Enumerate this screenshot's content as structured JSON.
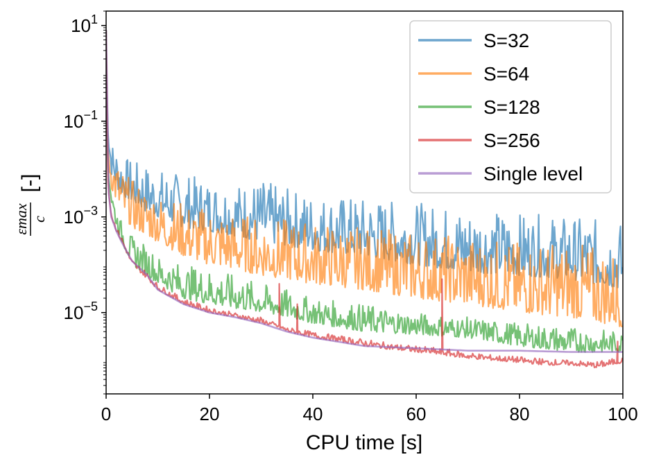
{
  "chart_data": {
    "type": "line",
    "xlabel": "CPU time [s]",
    "ylabel": "[-]",
    "ylabel_math": {
      "numerator": "εmax",
      "denominator": "c"
    },
    "xlim": [
      0,
      100
    ],
    "ylim": [
      2e-07,
      20
    ],
    "yscale": "log",
    "x_ticks": [
      0,
      20,
      40,
      60,
      80,
      100
    ],
    "y_ticks": [
      {
        "value": 10,
        "base": "10",
        "exp": "1"
      },
      {
        "value": 0.1,
        "base": "10",
        "exp": "−1"
      },
      {
        "value": 0.001,
        "base": "10",
        "exp": "−3"
      },
      {
        "value": 1e-05,
        "base": "10",
        "exp": "−5"
      }
    ],
    "grid": false,
    "legend_position": "top-right",
    "series": [
      {
        "name": "S=32",
        "color": "#1f77b4",
        "x": [
          0,
          0.3,
          1,
          2,
          3,
          5,
          8,
          10,
          15,
          20,
          25,
          30,
          35,
          40,
          50,
          60,
          70,
          80,
          90,
          100
        ],
        "low": [
          8,
          0.05,
          0.008,
          0.004,
          0.003,
          0.002,
          0.0012,
          0.001,
          0.0006,
          0.0005,
          0.0004,
          0.0003,
          0.00025,
          0.0002,
          0.00015,
          0.0001,
          7e-05,
          6e-05,
          5e-05,
          3e-05
        ],
        "high": [
          8,
          0.06,
          0.04,
          0.03,
          0.02,
          0.015,
          0.012,
          0.01,
          0.008,
          0.006,
          0.005,
          0.006,
          0.004,
          0.003,
          0.0025,
          0.002,
          0.0015,
          0.0012,
          0.001,
          0.0008
        ]
      },
      {
        "name": "S=64",
        "color": "#ff7f0e",
        "x": [
          0,
          0.3,
          1,
          2,
          3,
          5,
          8,
          10,
          15,
          20,
          25,
          30,
          35,
          40,
          50,
          60,
          70,
          80,
          90,
          100
        ],
        "low": [
          8,
          0.02,
          0.004,
          0.002,
          0.0012,
          0.0006,
          0.0004,
          0.0003,
          0.00015,
          0.0001,
          8e-05,
          6e-05,
          5e-05,
          4e-05,
          3e-05,
          2e-05,
          1.5e-05,
          1e-05,
          8e-06,
          5e-06
        ],
        "high": [
          8,
          0.03,
          0.02,
          0.015,
          0.01,
          0.006,
          0.004,
          0.003,
          0.002,
          0.0015,
          0.0012,
          0.001,
          0.0009,
          0.0008,
          0.0006,
          0.0005,
          0.0004,
          0.0003,
          0.0003,
          0.0002
        ]
      },
      {
        "name": "S=128",
        "color": "#2ca02c",
        "x": [
          0,
          0.3,
          1,
          2,
          3,
          5,
          8,
          10,
          15,
          20,
          25,
          30,
          35,
          40,
          50,
          60,
          70,
          80,
          90,
          100
        ],
        "low": [
          8,
          0.01,
          0.002,
          0.0006,
          0.0003,
          0.0001,
          6e-05,
          4e-05,
          2e-05,
          1.5e-05,
          1.2e-05,
          1e-05,
          8e-06,
          6e-06,
          4e-06,
          3.5e-06,
          3e-06,
          2e-06,
          1.5e-06,
          1.5e-06
        ],
        "high": [
          8,
          0.012,
          0.004,
          0.0015,
          0.0008,
          0.0004,
          0.00025,
          0.00015,
          0.0001,
          8e-05,
          6e-05,
          4e-05,
          3e-05,
          2e-05,
          1.5e-05,
          1e-05,
          8e-06,
          6e-06,
          5e-06,
          4e-06
        ]
      },
      {
        "name": "S=256",
        "color": "#d62728",
        "x": [
          0,
          0.3,
          1,
          2,
          3,
          5,
          8,
          10,
          15,
          20,
          25,
          30,
          33,
          35,
          40,
          45,
          50,
          55,
          60,
          65,
          70,
          75,
          80,
          85,
          90,
          95,
          100
        ],
        "low": [
          8,
          0.005,
          0.001,
          0.0005,
          0.0003,
          0.0001,
          5e-05,
          3e-05,
          1.5e-05,
          1e-05,
          8e-06,
          6e-06,
          5e-06,
          4e-06,
          3e-06,
          2.5e-06,
          2e-06,
          1.7e-06,
          1.5e-06,
          1.3e-06,
          1.1e-06,
          1e-06,
          9e-07,
          8e-07,
          8e-07,
          7e-07,
          9e-07
        ],
        "high": [
          8,
          0.006,
          0.0013,
          0.0006,
          0.0004,
          0.00013,
          7e-05,
          4e-05,
          2e-05,
          1.3e-05,
          1e-05,
          8e-06,
          6e-06,
          5e-06,
          4e-06,
          3.3e-06,
          2.8e-06,
          2.3e-06,
          2e-06,
          1.8e-06,
          1.5e-06,
          1.3e-06,
          1.2e-06,
          1.1e-06,
          1e-06,
          9.5e-07,
          1.2e-06
        ],
        "spikes": [
          [
            33.5,
            4e-05
          ],
          [
            37,
            1.5e-05
          ],
          [
            65,
            5e-05
          ],
          [
            99,
            2.5e-06
          ]
        ]
      },
      {
        "name": "Single level",
        "color": "#9467bd",
        "x": [
          0,
          0.3,
          1,
          2,
          3,
          5,
          8,
          10,
          15,
          20,
          25,
          30,
          35,
          40,
          50,
          60,
          65,
          70,
          80,
          90,
          100
        ],
        "low": [
          8,
          0.005,
          0.001,
          0.0005,
          0.0003,
          0.00012,
          6e-05,
          3e-05,
          1.5e-05,
          1e-05,
          8e-06,
          6e-06,
          4e-06,
          3e-06,
          2e-06,
          1.8e-06,
          1.7e-06,
          1.6e-06,
          1.6e-06,
          1.5e-06,
          1.5e-06
        ],
        "high": [
          8,
          0.005,
          0.001,
          0.0005,
          0.0003,
          0.00012,
          6e-05,
          3e-05,
          1.5e-05,
          1e-05,
          8e-06,
          6e-06,
          4e-06,
          3e-06,
          2e-06,
          1.8e-06,
          1.7e-06,
          1.6e-06,
          1.6e-06,
          1.5e-06,
          1.5e-06
        ]
      }
    ]
  }
}
